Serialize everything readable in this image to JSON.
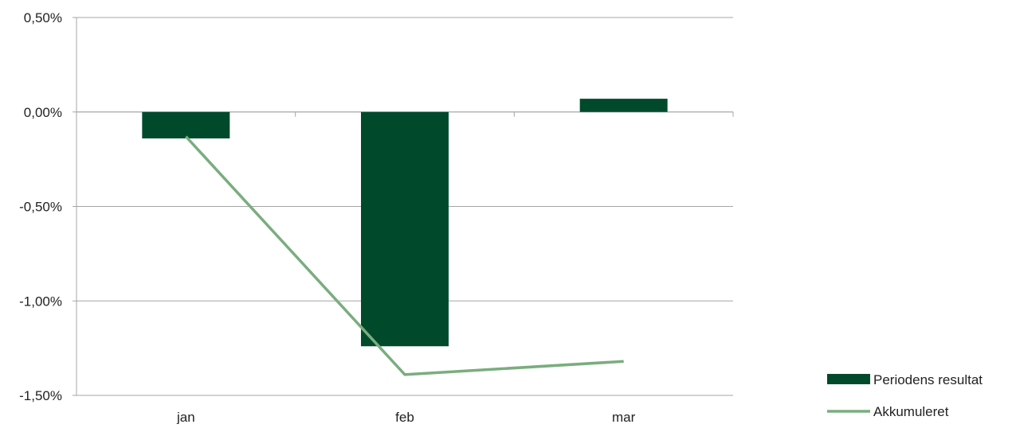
{
  "chart_data": {
    "type": "bar",
    "categories": [
      "jan",
      "feb",
      "mar"
    ],
    "series": [
      {
        "name": "Periodens resultat",
        "kind": "bar",
        "color": "#004a2c",
        "values": [
          -0.14,
          -1.24,
          0.07
        ]
      },
      {
        "name": "Akkumuleret",
        "kind": "line",
        "color": "#7aad7e",
        "values": [
          -0.13,
          -1.39,
          -1.32
        ]
      }
    ],
    "y_ticks": [
      "0,50%",
      "0,00%",
      "-0,50%",
      "-1,00%",
      "-1,50%"
    ],
    "y_tick_values": [
      0.5,
      0.0,
      -0.5,
      -1.0,
      -1.5
    ],
    "ylim": [
      -1.5,
      0.5
    ],
    "grid": true,
    "legend_position": "bottom-right"
  }
}
